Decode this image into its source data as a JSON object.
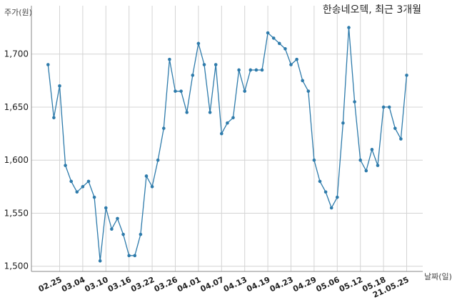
{
  "chart_data": {
    "type": "line",
    "title": "한송네오텍, 최근 3개월",
    "ylabel": "주가(원)",
    "xlabel": "날짜(일)",
    "ylim": [
      1500,
      1735
    ],
    "yticks": [
      1500,
      1550,
      1600,
      1650,
      1700
    ],
    "ytick_labels": [
      "1,500",
      "1,550",
      "1,600",
      "1,650",
      "1,700"
    ],
    "xtick_labels": [
      "02.25",
      "03.04",
      "03.10",
      "03.16",
      "03.22",
      "03.26",
      "04.01",
      "04.07",
      "04.13",
      "04.19",
      "04.23",
      "04.29",
      "05.06",
      "05.12",
      "05.18",
      "21.05.25"
    ],
    "xtick_index": [
      2,
      6,
      10,
      14,
      18,
      22,
      26,
      30,
      34,
      38,
      42,
      46,
      50,
      54,
      58,
      62
    ],
    "grid": true,
    "color": "#2e7bab",
    "values": [
      1690,
      1640,
      1670,
      1595,
      1580,
      1570,
      1575,
      1580,
      1565,
      1505,
      1555,
      1535,
      1545,
      1530,
      1510,
      1510,
      1530,
      1585,
      1575,
      1600,
      1630,
      1695,
      1665,
      1665,
      1645,
      1680,
      1710,
      1690,
      1645,
      1690,
      1625,
      1635,
      1640,
      1685,
      1665,
      1685,
      1685,
      1685,
      1720,
      1715,
      1710,
      1705,
      1690,
      1695,
      1675,
      1665,
      1600,
      1580,
      1570,
      1555,
      1565,
      1635,
      1725,
      1655,
      1600,
      1590,
      1610,
      1595,
      1650,
      1650,
      1630,
      1620,
      1680
    ]
  }
}
